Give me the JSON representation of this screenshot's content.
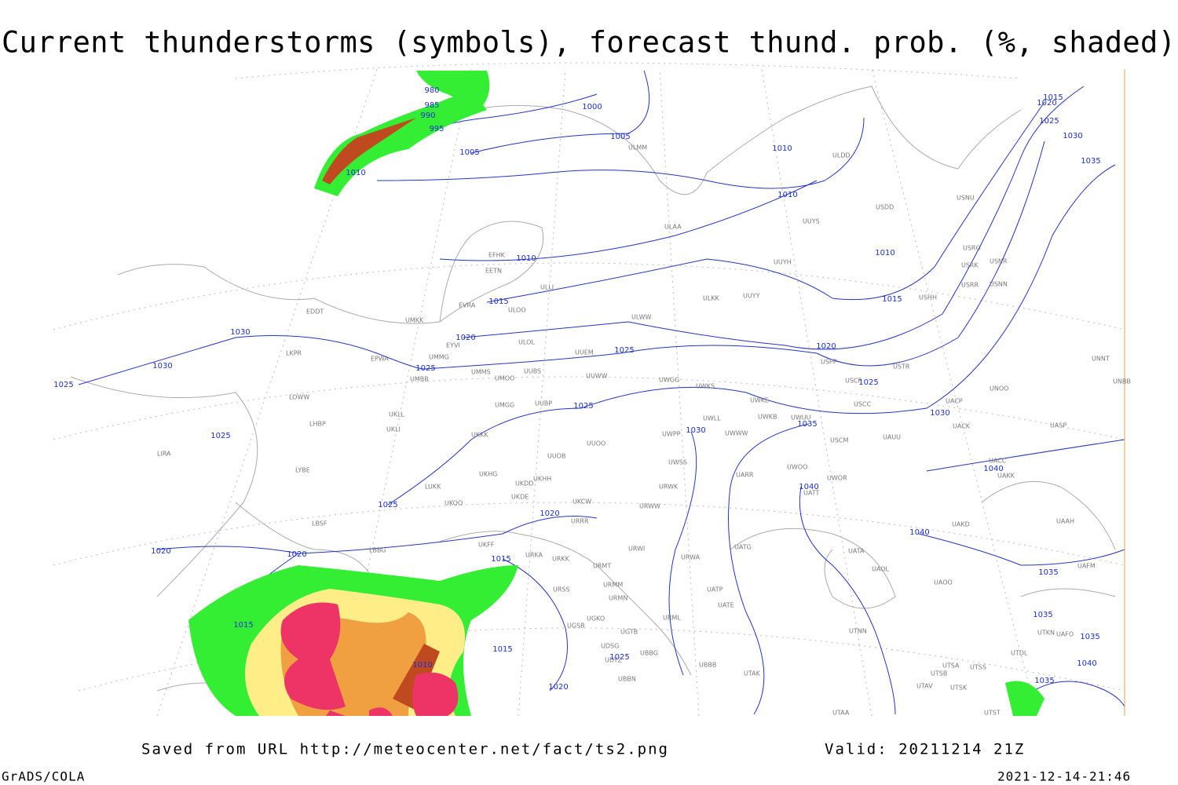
{
  "title": "Current thunderstorms (symbols), forecast thund. prob. (%, shaded)",
  "isobar_labels": [
    980,
    985,
    990,
    995,
    1000,
    1005,
    1005,
    1010,
    1010,
    1010,
    1010,
    1010,
    1015,
    1020,
    1025,
    1030,
    1035,
    1015,
    1015,
    1020,
    1020,
    1025,
    1025,
    1025,
    1030,
    1030,
    1025,
    1025,
    1030,
    1030,
    1035,
    1025,
    1025,
    1040,
    1040,
    1020,
    1040,
    1020,
    1020,
    1015,
    1035,
    1035,
    1035,
    1015,
    1015,
    1025,
    1010,
    1040,
    1035,
    1020
  ],
  "stations": [
    "ULMM",
    "ULDD",
    "USDD",
    "USNU",
    "UUYS",
    "ULAA",
    "EFHK",
    "EETN",
    "ULLI",
    "UUYH",
    "USRO",
    "USRK",
    "USNR",
    "USRR",
    "USNN",
    "ULKK",
    "UUYY",
    "USHH",
    "EVRA",
    "ULOO",
    "EDDT",
    "UMKK",
    "ULWW",
    "ULOL",
    "EYVI",
    "UUEM",
    "LKPR",
    "UMMG",
    "EPWA",
    "USPP",
    "USTR",
    "UMMS",
    "UUBS",
    "UMOO",
    "UUWW",
    "UMBB",
    "UWGG",
    "UWKS",
    "USCF",
    "UNOO",
    "UNNT",
    "UNBB",
    "LOWW",
    "UWKE",
    "USCC",
    "UACP",
    "UMGG",
    "UUBP",
    "UKLL",
    "UWKB",
    "UWUU",
    "UWLL",
    "LHBP",
    "UKLI",
    "UACK",
    "UASP",
    "UKKK",
    "UWPP",
    "UWWW",
    "USCM",
    "UAUU",
    "UUOO",
    "LIRA",
    "UUOB",
    "UWSS",
    "UACC",
    "UAKK",
    "LYBE",
    "UKHG",
    "UKDD",
    "UKHH",
    "UARR",
    "UWOO",
    "UWOR",
    "UKOO",
    "LUKK",
    "URWK",
    "UATT",
    "UKDE",
    "UKCW",
    "URWW",
    "LBSF",
    "URRR",
    "UAKD",
    "UAAH",
    "LBBG",
    "UKFF",
    "URKA",
    "URKK",
    "URWI",
    "UATG",
    "UATA",
    "URMT",
    "URWA",
    "UAOL",
    "UAOO",
    "URSS",
    "URMM",
    "UATP",
    "URMN",
    "UATE",
    "UAFM",
    "UGKO",
    "UGSB",
    "UGTB",
    "URML",
    "UTNN",
    "UTKN",
    "UAFO",
    "UTDL",
    "UDSG",
    "UBBG",
    "UDYZ",
    "UBBB",
    "UTSA",
    "UTSS",
    "UTAK",
    "UTSB",
    "UBBN",
    "UTAV",
    "UTSK",
    "UTAA",
    "UTST"
  ],
  "footer": {
    "source": "Saved from URL http://meteocenter.net/fact/ts2.png",
    "valid": "Valid: 20211214 21Z",
    "software": "GrADS/COLA",
    "timestamp": "2021-12-14-21:46"
  }
}
